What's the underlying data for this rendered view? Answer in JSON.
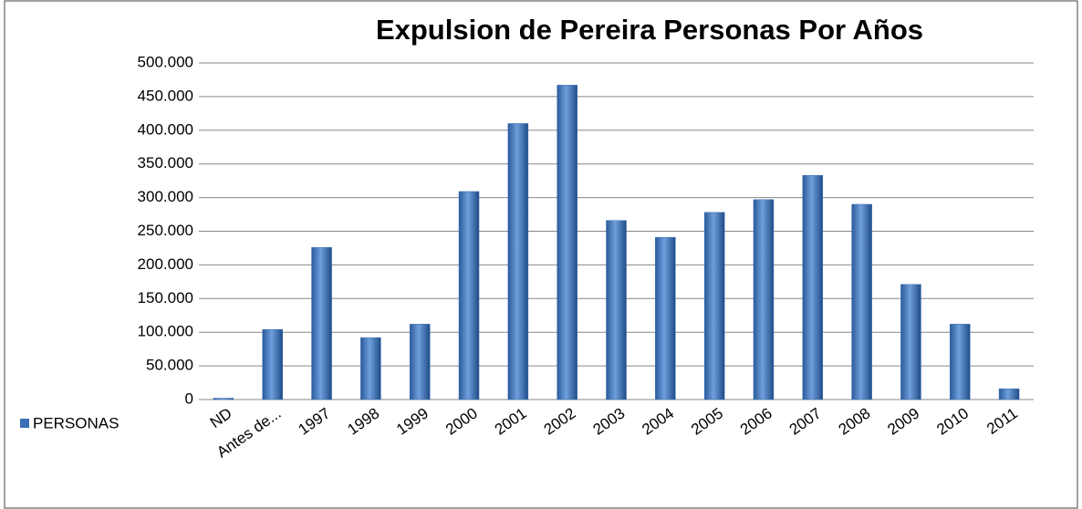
{
  "chart_data": {
    "type": "bar",
    "title": "Expulsion de Pereira Personas Por Años",
    "categories": [
      "ND",
      "Antes de...",
      "1997",
      "1998",
      "1999",
      "2000",
      "2001",
      "2002",
      "2003",
      "2004",
      "2005",
      "2006",
      "2007",
      "2008",
      "2009",
      "2010",
      "2011"
    ],
    "series": [
      {
        "name": "PERSONAS",
        "color": "#3a6fb5",
        "values": [
          2000,
          104000,
          226000,
          92000,
          112000,
          309000,
          410000,
          467000,
          266000,
          241000,
          278000,
          297000,
          333000,
          290000,
          171000,
          112000,
          16000
        ]
      }
    ],
    "ylim": [
      0,
      500000
    ],
    "yticks": [
      0,
      {
        "value": 50000,
        "label": "50.000"
      },
      {
        "value": 100000,
        "label": "100.000"
      },
      {
        "value": 150000,
        "label": "150.000"
      },
      {
        "value": 200000,
        "label": "200.000"
      },
      {
        "value": 250000,
        "label": "250.000"
      },
      {
        "value": 300000,
        "label": "300.000"
      },
      {
        "value": 350000,
        "label": "350.000"
      },
      {
        "value": 400000,
        "label": "400.000"
      },
      {
        "value": 450000,
        "label": "450.000"
      },
      {
        "value": 500000,
        "label": "500.000"
      }
    ],
    "grid": true,
    "legend": "left"
  }
}
